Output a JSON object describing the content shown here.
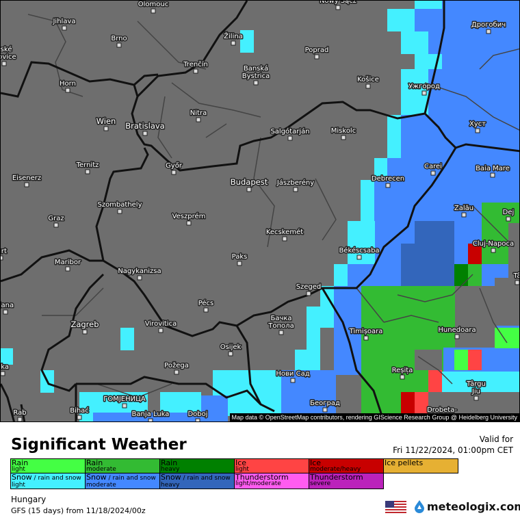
{
  "map": {
    "attribution": "Map data © OpenStreetMap contributors, rendering GIScience Research Group @ Heidelberg University",
    "cities": [
      "Olomouc",
      "Nowy Sącz",
      "Jihlava",
      "Brno",
      "eské\nějovice",
      "Žilina",
      "Poprad",
      "Дрогобич",
      "Trenčín",
      "Banská\nBystrica",
      "Košice",
      "Ужгород",
      "Horn",
      "Wien",
      "Bratislava",
      "Nitra",
      "Salgótarján",
      "Miskolc",
      "Хуст",
      "Ternitz",
      "Győr",
      "Carei",
      "Baia Mare",
      "Eisenerz",
      "Budapest",
      "Jászberény",
      "Debrecen",
      "Szombathely",
      "Graz",
      "Veszprém",
      "Zalău",
      "Dej",
      "Cluj-Napoca",
      "Kecskemét",
      "furt",
      "Maribor",
      "Paks",
      "Békéscsaba",
      "Nagykanizsa",
      "Szeged",
      "Pécs",
      "ljana",
      "Zagreb",
      "Virovitica",
      "Бачка\nТопола",
      "Timișoara",
      "Hunedoara",
      "Osijek",
      "eka",
      "Požega",
      "Нови Сад",
      "Reșița",
      "Târgu\nJiu",
      "ГОМЈЕНИЦА",
      "Bihać",
      "Banja Luka",
      "Doboj",
      "Rab",
      "Београд",
      "Drobeta-",
      "Tâ"
    ],
    "colors": {
      "background": "#6e6e6e",
      "rain_light": "#44ff44",
      "rain_moderate": "#33bb33",
      "rain_heavy": "#008000",
      "ice_light": "#ff4444",
      "ice_heavy": "#c80000",
      "snow_light": "#44f0ff",
      "snow_moderate": "#4488ff",
      "snow_heavy": "#3366bb"
    }
  },
  "header": {
    "title": "Significant Weather",
    "valid_label": "Valid for",
    "valid_time": "Fri 11/22/2024, 01:00pm CET"
  },
  "legend": [
    [
      {
        "main": "Rain",
        "sub": "light",
        "color": "#44ff44"
      },
      {
        "main": "Rain",
        "sub": "moderate",
        "color": "#33bb33"
      },
      {
        "main": "Rain",
        "sub": "heavy",
        "color": "#008000"
      },
      {
        "main": "Ice",
        "sub": "light",
        "color": "#ff4444"
      },
      {
        "main": "Ice",
        "sub": "moderate/heavy",
        "color": "#c80000"
      },
      {
        "main": "Ice pellets",
        "sub": "",
        "color": "#e6b033"
      }
    ],
    [
      {
        "main": "Snow",
        "extra": " / rain and snow",
        "sub": "light",
        "color": "#44f0ff"
      },
      {
        "main": "Snow",
        "extra": " / rain and snow",
        "sub": "moderate",
        "color": "#4488ff"
      },
      {
        "main": "Snow",
        "extra": " / rain and snow",
        "sub": "heavy",
        "color": "#3366bb"
      },
      {
        "main": "Thunderstorm",
        "sub": "light/moderate",
        "color": "#ff5cf0"
      },
      {
        "main": "Thunderstorm",
        "sub": "severe",
        "color": "#bb22bb"
      }
    ]
  ],
  "footer": {
    "region": "Hungary",
    "model": "GFS (15 days) from  11/18/2024/00z",
    "brand": "meteologix.com",
    "flag_icon": "us-flag-icon",
    "logo_icon": "meteologix-drop-icon"
  }
}
